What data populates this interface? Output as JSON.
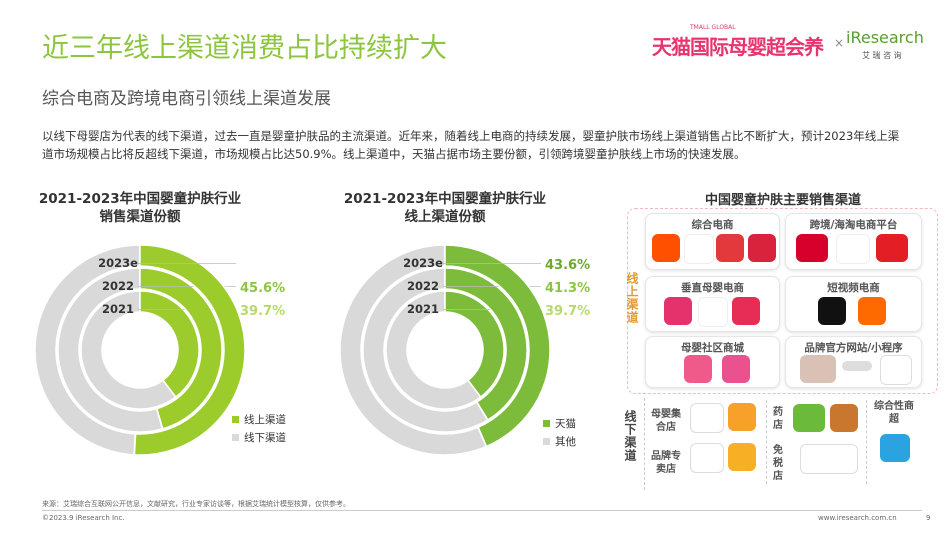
{
  "header": {
    "title": "近三年线上渠道消费占比持续扩大",
    "brand": "天猫国际母婴超会养",
    "brand_small": "TMALL GLOBAL",
    "cross": "×",
    "partner": "iResearch",
    "partner_cn": "艾 瑞 咨 询",
    "subtitle": "综合电商及跨境电商引领线上渠道发展"
  },
  "paragraph": "以线下母婴店为代表的线下渠道，过去一直是婴童护肤品的主流渠道。近年来，随着线上电商的持续发展，婴童护肤市场线上渠道销售占比不断扩大，预计2023年线上渠道市场规模占比将反超线下渠道，市场规模占比达50.9%。线上渠道中，天猫占据市场主要份额，引领跨境婴童护肤线上市场的快速发展。",
  "chart_data": [
    {
      "type": "donut",
      "title": "2021-2023年中国婴童护肤行业销售渠道份额",
      "categories": [
        "2021",
        "2022",
        "2023e"
      ],
      "series": [
        {
          "name": "线上渠道",
          "color": "#9ccb2c",
          "values": [
            39.7,
            45.6,
            50.9
          ],
          "value_labels": [
            "39.7%",
            "45.6%",
            null
          ],
          "label_colors": [
            "#b7da6a",
            "#8cc63f",
            null
          ]
        },
        {
          "name": "线下渠道",
          "color": "#d9d9d9",
          "values": [
            60.3,
            54.4,
            49.1
          ]
        }
      ]
    },
    {
      "type": "donut",
      "title": "2021-2023年中国婴童护肤行业线上渠道份额",
      "categories": [
        "2021",
        "2022",
        "2023e"
      ],
      "series": [
        {
          "name": "天猫",
          "color": "#7dbb3a",
          "values": [
            39.7,
            41.3,
            43.6
          ],
          "value_labels": [
            "39.7%",
            "41.3%",
            "43.6%"
          ],
          "label_colors": [
            "#b7da6a",
            "#8cc63f",
            "#6aab2e"
          ]
        },
        {
          "name": "其他",
          "color": "#d9d9d9",
          "values": [
            60.3,
            58.7,
            56.4
          ]
        }
      ]
    }
  ],
  "channels": {
    "title": "中国婴童护肤主要销售渠道",
    "online": {
      "label": "线上渠道",
      "groups": [
        "综合电商",
        "跨境/海淘电商平台",
        "垂直母婴电商",
        "短视频电商",
        "母婴社区商城",
        "品牌官方网站/小程序"
      ]
    },
    "offline": {
      "label": "线下渠道",
      "groups": [
        "母婴集合店",
        "药店",
        "综合性商超",
        "品牌专卖店",
        "免税店"
      ]
    }
  },
  "footer": {
    "source": "来源：艾瑞综合互联网公开信息，文献研究，行业专家访谈等，根据艾瑞统计模型核算，仅供参考。",
    "copyright": "©2023.9 iResearch Inc.",
    "website": "www.iresearch.com.cn",
    "page": "9"
  }
}
